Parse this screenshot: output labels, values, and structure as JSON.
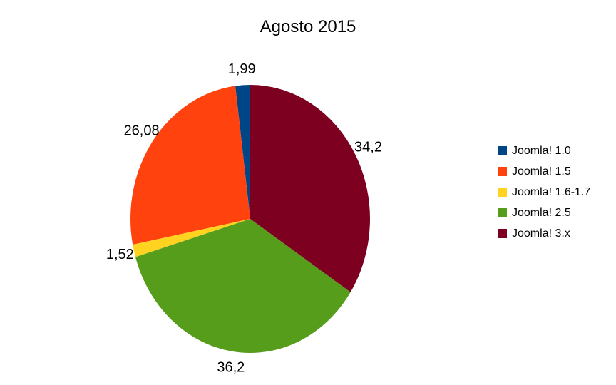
{
  "chart_data": {
    "type": "pie",
    "title": "Agosto 2015",
    "legend_position": "right",
    "start_angle_deg": 90,
    "direction": "counterclockwise",
    "decimal_separator": ",",
    "background_color": "#ffffff",
    "text_color": "#000000",
    "slices": [
      {
        "label": "Joomla! 1.0",
        "value": 1.99,
        "display_value": "1,99",
        "color": "#004586"
      },
      {
        "label": "Joomla! 1.5",
        "value": 26.08,
        "display_value": "26,08",
        "color": "#FF420E"
      },
      {
        "label": "Joomla! 1.6-1.7",
        "value": 1.52,
        "display_value": "1,52",
        "color": "#FFD320"
      },
      {
        "label": "Joomla! 2.5",
        "value": 36.2,
        "display_value": "36,2",
        "color": "#579D1C"
      },
      {
        "label": "Joomla! 3.x",
        "value": 34.2,
        "display_value": "34,2",
        "color": "#7E0021"
      }
    ]
  }
}
